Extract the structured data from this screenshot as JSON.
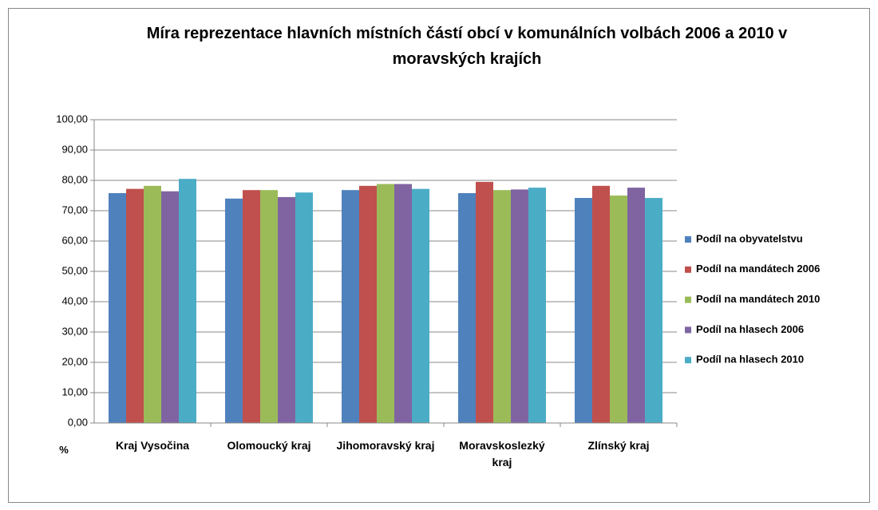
{
  "chart_data": {
    "type": "bar",
    "title": "Míra reprezentace hlavních místních částí obcí v komunálních volbách 2006 a 2010 v moravských krajích",
    "y_label": "%",
    "categories": [
      "Kraj Vysočina",
      "Olomoucký kraj",
      "Jihomoravský kraj",
      "Moravskoslezký kraj",
      "Zlínský kraj"
    ],
    "series": [
      {
        "name": "Podíl na obyvatelstvu",
        "color": "#4f81bd",
        "values": [
          75.8,
          74.0,
          76.8,
          75.8,
          74.2
        ]
      },
      {
        "name": "Podíl na mandátech 2006",
        "color": "#c0504d",
        "values": [
          77.2,
          76.8,
          78.2,
          79.5,
          78.2
        ]
      },
      {
        "name": "Podíl na mandátech 2010",
        "color": "#9bbb59",
        "values": [
          78.2,
          76.8,
          78.8,
          76.8,
          75.0
        ]
      },
      {
        "name": "Podíl na hlasech 2006",
        "color": "#8064a2",
        "values": [
          76.4,
          74.5,
          78.8,
          77.0,
          77.6
        ]
      },
      {
        "name": "Podíl na hlasech 2010",
        "color": "#4bacc6",
        "values": [
          80.5,
          76.0,
          77.2,
          77.6,
          74.2
        ]
      }
    ],
    "ylim": [
      0,
      100
    ],
    "yticks": [
      {
        "value": 0,
        "label": "0,00"
      },
      {
        "value": 10,
        "label": "10,00"
      },
      {
        "value": 20,
        "label": "20,00"
      },
      {
        "value": 30,
        "label": "30,00"
      },
      {
        "value": 40,
        "label": "40,00"
      },
      {
        "value": 50,
        "label": "50,00"
      },
      {
        "value": 60,
        "label": "60,00"
      },
      {
        "value": 70,
        "label": "70,00"
      },
      {
        "value": 80,
        "label": "80,00"
      },
      {
        "value": 90,
        "label": "90,00"
      },
      {
        "value": 100,
        "label": "100,00"
      }
    ],
    "grid": true,
    "legend": "right"
  }
}
